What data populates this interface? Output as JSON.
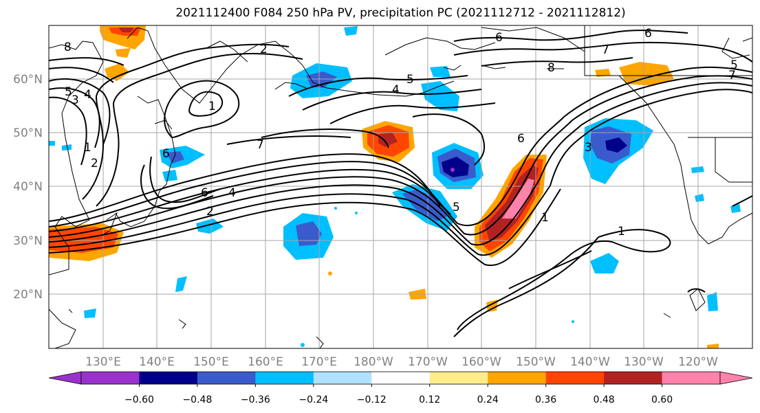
{
  "title": "2021112400 F084 250 hPa PV, precipitation PC (2021112712 - 2021112812)",
  "lat_ticks": [
    "60°N",
    "50°N",
    "40°N",
    "30°N",
    "20°N"
  ],
  "lon_ticks": [
    "130°E",
    "140°E",
    "150°E",
    "160°E",
    "170°E",
    "180°W",
    "170°W",
    "160°W",
    "150°W",
    "140°W",
    "130°W",
    "120°W"
  ],
  "colorbar": {
    "colors": [
      "#9932cc",
      "#00008b",
      "#3a5bcc",
      "#00bfff",
      "#b0e2ff",
      "#ffffff",
      "#ffec8b",
      "#ffa500",
      "#ff4500",
      "#b22222",
      "#ff82ab"
    ],
    "under_color": "#9932cc",
    "over_color": "#ff82ab",
    "tick_labels": [
      "−0.60",
      "−0.48",
      "−0.36",
      "−0.24",
      "−0.12",
      "0.12",
      "0.24",
      "0.36",
      "0.48",
      "0.60"
    ]
  },
  "contour_labels": [
    "6",
    "6",
    "7",
    "8",
    "5",
    "4",
    "2",
    "1",
    "8",
    "5",
    "3",
    "4",
    "1",
    "2",
    "7",
    "6",
    "4",
    "2",
    "5",
    "6",
    "1",
    "3",
    "1",
    "6",
    "7",
    "5"
  ]
}
